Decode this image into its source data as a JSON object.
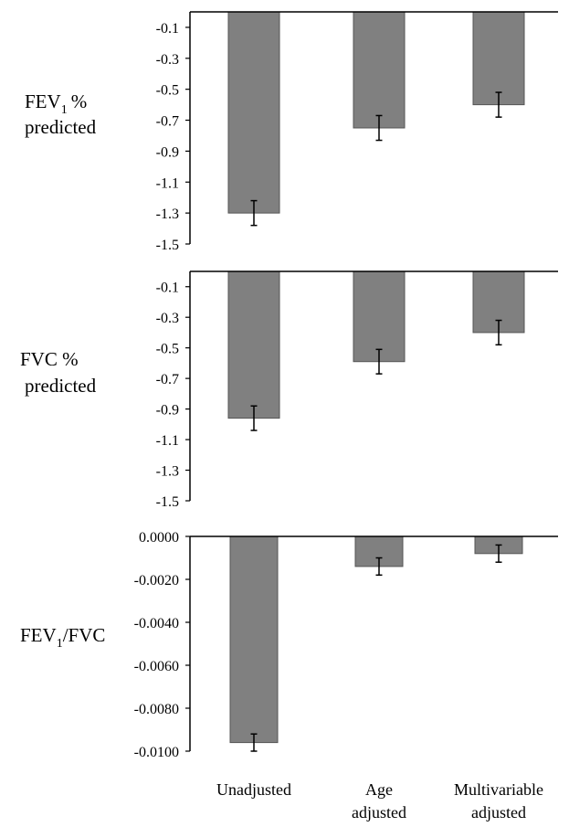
{
  "chart_data": [
    {
      "type": "bar",
      "row_label": [
        "FEV",
        "1",
        "%",
        "predicted"
      ],
      "categories": [
        "Unadjusted",
        "Age adjusted",
        "Multivariable adjusted"
      ],
      "values": [
        -1.3,
        -0.75,
        -0.6
      ],
      "error": [
        0.08,
        0.08,
        0.08
      ],
      "ylim": [
        -1.5,
        0
      ],
      "yticks": [
        -0.1,
        -0.3,
        -0.5,
        -0.7,
        -0.9,
        -1.1,
        -1.3,
        -1.5
      ],
      "ytick_labels": [
        "-0.1",
        "-0.3",
        "-0.5",
        "-0.7",
        "-0.9",
        "-1.1",
        "-1.3",
        "-1.5"
      ],
      "bar_color": "#808080"
    },
    {
      "type": "bar",
      "row_label": [
        "FVC %",
        "predicted"
      ],
      "categories": [
        "Unadjusted",
        "Age adjusted",
        "Multivariable adjusted"
      ],
      "values": [
        -0.96,
        -0.59,
        -0.4
      ],
      "error": [
        0.08,
        0.08,
        0.08
      ],
      "ylim": [
        -1.5,
        0
      ],
      "yticks": [
        -0.1,
        -0.3,
        -0.5,
        -0.7,
        -0.9,
        -1.1,
        -1.3,
        -1.5
      ],
      "ytick_labels": [
        "-0.1",
        "-0.3",
        "-0.5",
        "-0.7",
        "-0.9",
        "-1.1",
        "-1.3",
        "-1.5"
      ],
      "bar_color": "#808080"
    },
    {
      "type": "bar",
      "row_label": [
        "FEV",
        "1",
        "/FVC"
      ],
      "categories": [
        "Unadjusted",
        "Age adjusted",
        "Multivariable adjusted"
      ],
      "values": [
        -0.0096,
        -0.0014,
        -0.0008
      ],
      "error": [
        0.0004,
        0.0004,
        0.0004
      ],
      "ylim": [
        -0.01,
        0
      ],
      "yticks": [
        0,
        -0.002,
        -0.004,
        -0.006,
        -0.008,
        -0.01
      ],
      "ytick_labels": [
        "0.0000",
        "-0.0020",
        "-0.0040",
        "-0.0060",
        "-0.0080",
        "-0.0100"
      ],
      "bar_color": "#808080"
    }
  ],
  "x_labels": [
    [
      "Unadjusted"
    ],
    [
      "Age",
      "adjusted"
    ],
    [
      "Multivariable",
      "adjusted"
    ]
  ]
}
